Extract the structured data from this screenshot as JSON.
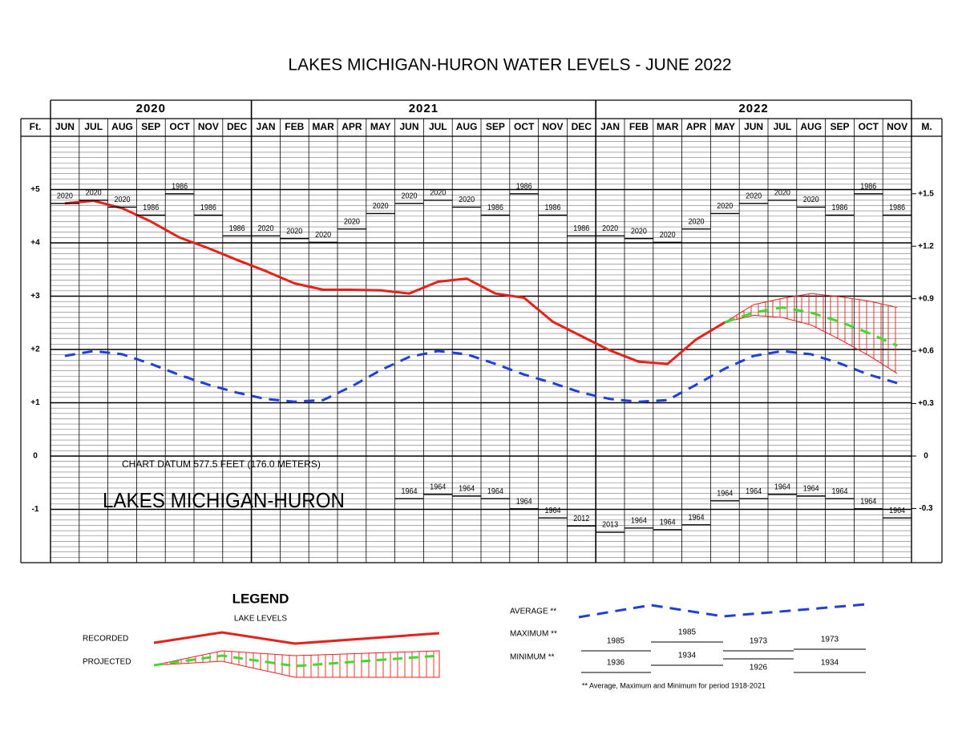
{
  "chart_data": {
    "type": "line",
    "title": "LAKES MICHIGAN-HURON WATER LEVELS - JUNE 2022",
    "years": [
      "2020",
      "2021",
      "2022"
    ],
    "categories": [
      "JUN",
      "JUL",
      "AUG",
      "SEP",
      "OCT",
      "NOV",
      "DEC",
      "JAN",
      "FEB",
      "MAR",
      "APR",
      "MAY",
      "JUN",
      "JUL",
      "AUG",
      "SEP",
      "OCT",
      "NOV",
      "DEC",
      "JAN",
      "FEB",
      "MAR",
      "APR",
      "MAY",
      "JUN",
      "JUL",
      "AUG",
      "SEP",
      "OCT",
      "NOV"
    ],
    "y_label": "Ft.",
    "y2_label": "M.",
    "ylim": [
      -2,
      6
    ],
    "yticks": [
      {
        "value": 5,
        "label": "+5"
      },
      {
        "value": 4,
        "label": "+4"
      },
      {
        "value": 3,
        "label": "+3"
      },
      {
        "value": 2,
        "label": "+2"
      },
      {
        "value": 1,
        "label": "+1"
      },
      0,
      -1
    ],
    "y2lim": [
      -0.6096,
      1.8288
    ],
    "y2ticks": [
      {
        "value": 1.5,
        "label": "+1.5"
      },
      {
        "value": 1.2,
        "label": "+1.2"
      },
      {
        "value": 0.9,
        "label": "+0.9"
      },
      {
        "value": 0.6,
        "label": "+0.6"
      },
      {
        "value": 0.3,
        "label": "+0.3"
      },
      0,
      -0.3
    ],
    "grid": true,
    "minor_grid_step": 0.1,
    "annotations": [
      "CHART DATUM  577.5 FEET (176.0 METERS)",
      "LAKES MICHIGAN-HURON"
    ],
    "series": [
      {
        "name": "RECORDED",
        "color": "#e8201c",
        "style": "solid",
        "values": [
          4.74,
          4.79,
          4.65,
          4.4,
          4.1,
          3.9,
          3.68,
          3.47,
          3.24,
          3.12,
          3.12,
          3.11,
          3.05,
          3.27,
          3.33,
          3.05,
          2.97,
          2.52,
          2.25,
          1.98,
          1.77,
          1.73,
          2.19,
          2.51,
          null,
          null,
          null,
          null,
          null,
          null
        ]
      },
      {
        "name": "PROJECTED",
        "color": "#3ddc2a",
        "style": "dashed",
        "band_color": "#e8201c",
        "values": [
          null,
          null,
          null,
          null,
          null,
          null,
          null,
          null,
          null,
          null,
          null,
          null,
          null,
          null,
          null,
          null,
          null,
          null,
          null,
          null,
          null,
          null,
          null,
          2.51,
          2.69,
          2.79,
          2.69,
          2.52,
          2.31,
          2.07
        ],
        "upper": [
          null,
          null,
          null,
          null,
          null,
          null,
          null,
          null,
          null,
          null,
          null,
          null,
          null,
          null,
          null,
          null,
          null,
          null,
          null,
          null,
          null,
          null,
          null,
          2.51,
          2.84,
          2.96,
          3.05,
          2.99,
          2.91,
          2.79
        ],
        "lower": [
          null,
          null,
          null,
          null,
          null,
          null,
          null,
          null,
          null,
          null,
          null,
          null,
          null,
          null,
          null,
          null,
          null,
          null,
          null,
          null,
          null,
          null,
          null,
          2.51,
          2.64,
          2.6,
          2.46,
          2.19,
          1.89,
          1.55
        ]
      },
      {
        "name": "AVERAGE **",
        "color": "#1f3fd6",
        "style": "dashed",
        "values": [
          1.88,
          1.97,
          1.91,
          1.73,
          1.52,
          1.34,
          1.19,
          1.07,
          1.02,
          1.05,
          1.31,
          1.61,
          1.86,
          1.97,
          1.91,
          1.73,
          1.53,
          1.37,
          1.19,
          1.07,
          1.02,
          1.05,
          1.34,
          1.64,
          1.88,
          1.97,
          1.91,
          1.74,
          1.53,
          1.37
        ]
      },
      {
        "name": "MAXIMUM **",
        "color": "#000000",
        "style": "step",
        "values": [
          4.74,
          4.8,
          4.67,
          4.52,
          4.92,
          4.52,
          4.13,
          4.13,
          4.08,
          4.01,
          4.26,
          4.55,
          4.74,
          4.8,
          4.67,
          4.52,
          4.92,
          4.52,
          4.13,
          4.13,
          4.08,
          4.01,
          4.26,
          4.55,
          4.74,
          4.8,
          4.67,
          4.52,
          4.92,
          4.52
        ],
        "years": [
          "2020",
          "2020",
          "2020",
          "1986",
          "1986",
          "1986",
          "1986",
          "2020",
          "2020",
          "2020",
          "2020",
          "2020",
          "2020",
          "2020",
          "2020",
          "1986",
          "1986",
          "1986",
          "1986",
          "2020",
          "2020",
          "2020",
          "2020",
          "2020",
          "2020",
          "2020",
          "2020",
          "1986",
          "1986",
          "1986"
        ]
      },
      {
        "name": "MINIMUM **",
        "color": "#000000",
        "style": "step",
        "values": [
          null,
          null,
          null,
          null,
          null,
          null,
          null,
          null,
          null,
          null,
          null,
          null,
          -0.8,
          -0.72,
          -0.75,
          -0.8,
          -0.99,
          -1.16,
          -1.31,
          -1.43,
          -1.35,
          -1.38,
          -1.29,
          -0.84,
          -0.8,
          -0.72,
          -0.75,
          -0.8,
          -0.99,
          -1.16
        ],
        "years": [
          null,
          null,
          null,
          null,
          null,
          null,
          null,
          null,
          null,
          null,
          null,
          null,
          "1964",
          "1964",
          "1964",
          "1964",
          "1964",
          "1964",
          "2012",
          "2013",
          "1964",
          "1964",
          "1964",
          "1964",
          "1964",
          "1964",
          "1964",
          "1964",
          "1964",
          "1964"
        ]
      }
    ],
    "legend": {
      "title": "LEGEND",
      "subtitle": "LAKE LEVELS",
      "maximum_years": [
        "1985",
        "1985",
        "1973",
        "1973"
      ],
      "minimum_years": [
        "1936",
        "1934",
        "1926",
        "1934"
      ],
      "footnote": "** Average, Maximum and Minimum for period 1918-2021"
    }
  }
}
